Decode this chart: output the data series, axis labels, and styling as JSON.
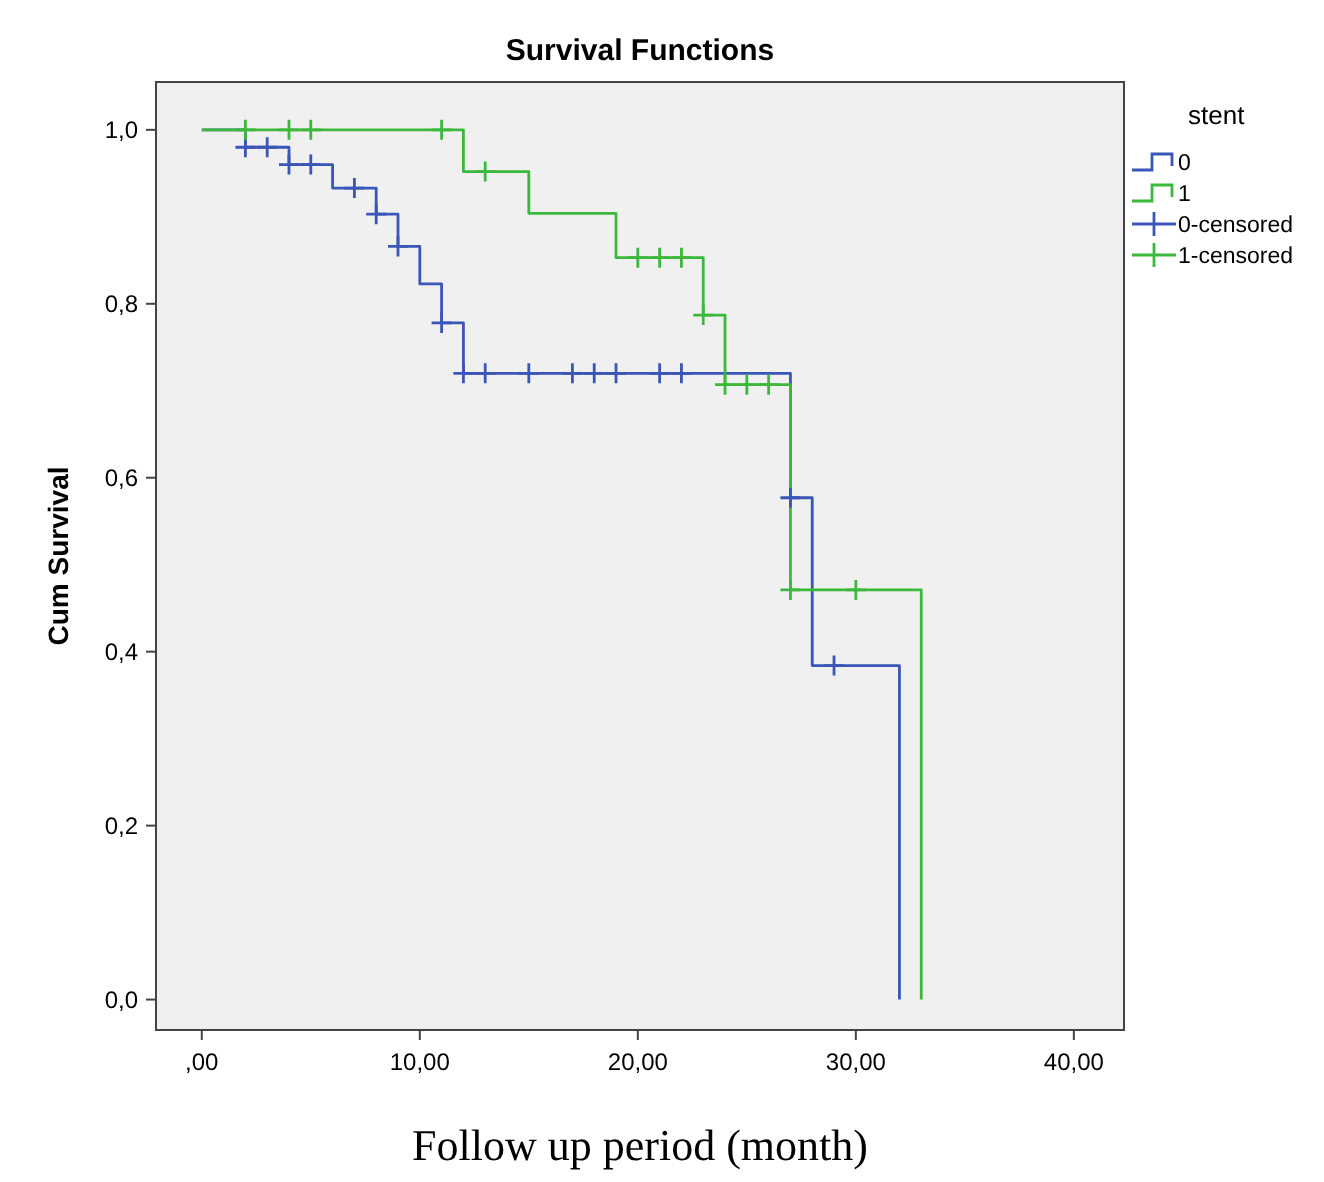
{
  "chart_data": {
    "type": "step",
    "title": "Survival Functions",
    "xlabel": "Follow up period (month)",
    "ylabel": "Cum Survival",
    "legend_title": "stent",
    "legend": "right",
    "grid": false,
    "xlim": [
      -2.1,
      42.3
    ],
    "ylim": [
      -0.035,
      1.055
    ],
    "xticks": [
      {
        "value": 0,
        "label": ",00"
      },
      {
        "value": 10,
        "label": "10,00"
      },
      {
        "value": 20,
        "label": "20,00"
      },
      {
        "value": 30,
        "label": "30,00"
      },
      {
        "value": 40,
        "label": "40,00"
      }
    ],
    "yticks": [
      {
        "value": 0,
        "label": "0,0"
      },
      {
        "value": 0.2,
        "label": "0,2"
      },
      {
        "value": 0.4,
        "label": "0,4"
      },
      {
        "value": 0.6,
        "label": "0,6"
      },
      {
        "value": 0.8,
        "label": "0,8"
      },
      {
        "value": 1,
        "label": "1,0"
      }
    ],
    "series": [
      {
        "name": "0",
        "color": "#3a56b8",
        "x": [
          0,
          2,
          4,
          6,
          8,
          9,
          10,
          11,
          12,
          27,
          28,
          32
        ],
        "values": [
          1,
          0.98,
          0.96,
          0.933,
          0.903,
          0.866,
          0.823,
          0.778,
          0.72,
          0.577,
          0.384,
          0
        ]
      },
      {
        "name": "1",
        "color": "#3cb93c",
        "x": [
          0,
          12,
          15,
          19,
          23,
          24,
          27,
          33
        ],
        "values": [
          1,
          0.952,
          0.904,
          0.853,
          0.787,
          0.707,
          0.471,
          0
        ]
      },
      {
        "name": "0-censored",
        "type": "scatter",
        "marker": "cross",
        "color": "#3a56b8",
        "x": [
          2,
          3,
          4,
          5,
          7,
          8,
          9,
          11,
          12,
          13,
          15,
          17,
          18,
          19,
          21,
          22,
          27,
          29
        ],
        "values": [
          0.98,
          0.98,
          0.96,
          0.96,
          0.933,
          0.903,
          0.866,
          0.778,
          0.72,
          0.72,
          0.72,
          0.72,
          0.72,
          0.72,
          0.72,
          0.72,
          0.577,
          0.384
        ]
      },
      {
        "name": "1-censored",
        "type": "scatter",
        "marker": "cross",
        "color": "#3cb93c",
        "x": [
          2,
          4,
          5,
          11,
          13,
          20,
          21,
          22,
          23,
          24,
          25,
          26,
          27,
          30
        ],
        "values": [
          1,
          1,
          1,
          1,
          0.952,
          0.853,
          0.853,
          0.853,
          0.787,
          0.707,
          0.707,
          0.707,
          0.471,
          0.471
        ]
      }
    ]
  }
}
